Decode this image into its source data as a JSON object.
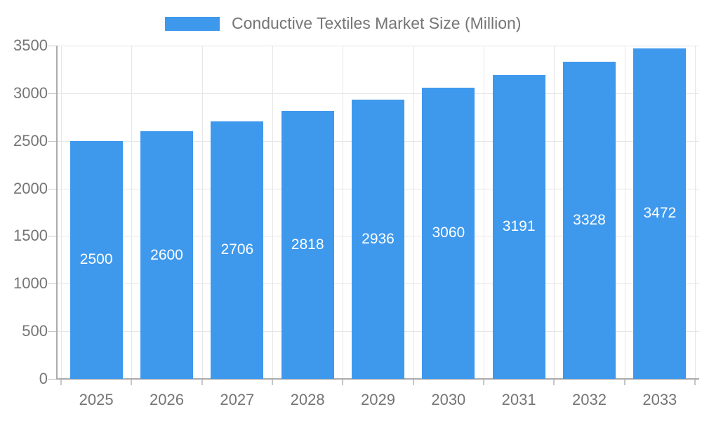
{
  "legend": {
    "label": "Conductive Textiles Market Size (Million)",
    "swatch_color": "#3E99ED"
  },
  "chart_data": {
    "type": "bar",
    "title": "Conductive Textiles Market Size (Million)",
    "categories": [
      "2025",
      "2026",
      "2027",
      "2028",
      "2029",
      "2030",
      "2031",
      "2032",
      "2033"
    ],
    "series": [
      {
        "name": "Conductive Textiles Market Size (Million)",
        "values": [
          2500,
          2600,
          2706,
          2818,
          2936,
          3060,
          3191,
          3328,
          3472
        ]
      }
    ],
    "value_labels_shown": true,
    "xlabel": "",
    "ylabel": "",
    "ylim": [
      0,
      3500
    ],
    "yticks": [
      0,
      500,
      1000,
      1500,
      2000,
      2500,
      3000,
      3500
    ],
    "grid": true,
    "legend_position": "top"
  },
  "colors": {
    "bar": "#3E99ED",
    "grid_line": "#e6e6e6",
    "axis_line": "#ababab",
    "tick": "#c6c6c6",
    "axis_text": "#757575",
    "value_label_text": "#ffffff",
    "background": "#ffffff"
  }
}
